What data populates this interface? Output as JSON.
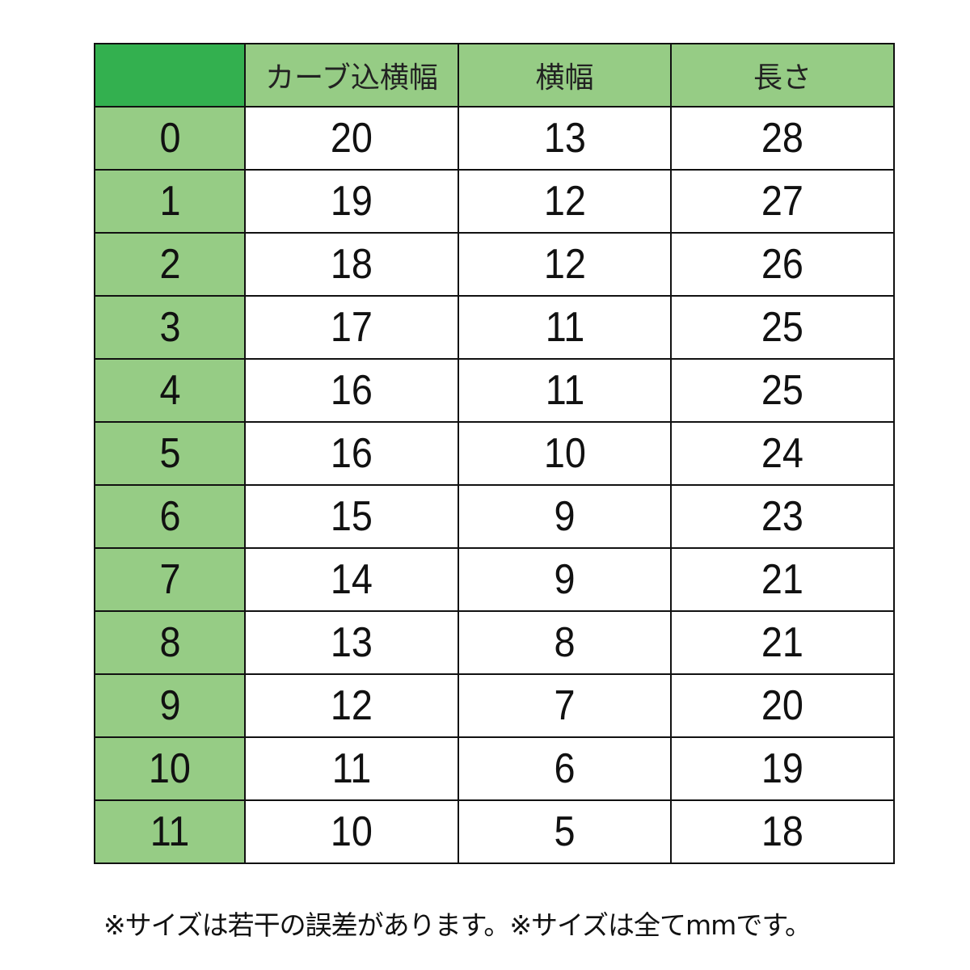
{
  "colors": {
    "corner": "#33b04f",
    "header": "#96cc85",
    "border": "#111111"
  },
  "table": {
    "headers": [
      "",
      "カーブ込横幅",
      "横幅",
      "長さ"
    ],
    "rows": [
      [
        "0",
        "20",
        "13",
        "28"
      ],
      [
        "1",
        "19",
        "12",
        "27"
      ],
      [
        "2",
        "18",
        "12",
        "26"
      ],
      [
        "3",
        "17",
        "11",
        "25"
      ],
      [
        "4",
        "16",
        "11",
        "25"
      ],
      [
        "5",
        "16",
        "10",
        "24"
      ],
      [
        "6",
        "15",
        "9",
        "23"
      ],
      [
        "7",
        "14",
        "9",
        "21"
      ],
      [
        "8",
        "13",
        "8",
        "21"
      ],
      [
        "9",
        "12",
        "7",
        "20"
      ],
      [
        "10",
        "11",
        "6",
        "19"
      ],
      [
        "11",
        "10",
        "5",
        "18"
      ]
    ]
  },
  "note": "※サイズは若干の誤差があります。※サイズは全てmmです。"
}
